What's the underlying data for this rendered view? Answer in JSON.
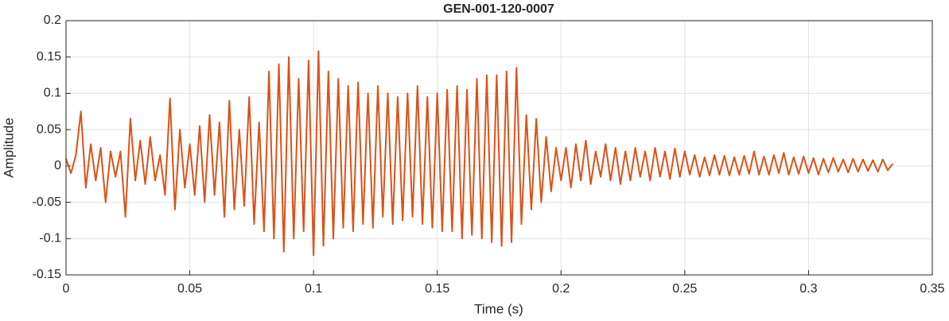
{
  "chart_data": {
    "type": "line",
    "title": "GEN-001-120-0007",
    "xlabel": "Time (s)",
    "ylabel": "Amplitude",
    "xlim": [
      0,
      0.35
    ],
    "xticks": [
      0,
      0.05,
      0.1,
      0.15,
      0.2,
      0.25,
      0.3,
      0.35
    ],
    "ylim": [
      -0.15,
      0.2
    ],
    "yticks": [
      -0.15,
      -0.1,
      -0.05,
      0,
      0.05,
      0.1,
      0.15,
      0.2
    ],
    "grid": true,
    "x": [
      0,
      0.002,
      0.004,
      0.006,
      0.008,
      0.01,
      0.012,
      0.014,
      0.016,
      0.018,
      0.02,
      0.022,
      0.024,
      0.026,
      0.028,
      0.03,
      0.032,
      0.034,
      0.036,
      0.038,
      0.04,
      0.042,
      0.044,
      0.046,
      0.048,
      0.05,
      0.052,
      0.054,
      0.056,
      0.058,
      0.06,
      0.062,
      0.064,
      0.066,
      0.068,
      0.07,
      0.072,
      0.074,
      0.076,
      0.078,
      0.08,
      0.082,
      0.084,
      0.086,
      0.088,
      0.09,
      0.092,
      0.094,
      0.096,
      0.098,
      0.1,
      0.102,
      0.104,
      0.106,
      0.108,
      0.11,
      0.112,
      0.114,
      0.116,
      0.118,
      0.12,
      0.122,
      0.124,
      0.126,
      0.128,
      0.13,
      0.132,
      0.134,
      0.136,
      0.138,
      0.14,
      0.142,
      0.144,
      0.146,
      0.148,
      0.15,
      0.152,
      0.154,
      0.156,
      0.158,
      0.16,
      0.162,
      0.164,
      0.166,
      0.168,
      0.17,
      0.172,
      0.174,
      0.176,
      0.178,
      0.18,
      0.182,
      0.184,
      0.186,
      0.188,
      0.19,
      0.192,
      0.194,
      0.196,
      0.198,
      0.2,
      0.202,
      0.204,
      0.206,
      0.208,
      0.21,
      0.212,
      0.214,
      0.216,
      0.218,
      0.22,
      0.222,
      0.224,
      0.226,
      0.228,
      0.23,
      0.232,
      0.234,
      0.236,
      0.238,
      0.24,
      0.242,
      0.244,
      0.246,
      0.248,
      0.25,
      0.252,
      0.254,
      0.256,
      0.258,
      0.26,
      0.262,
      0.264,
      0.266,
      0.268,
      0.27,
      0.272,
      0.274,
      0.276,
      0.278,
      0.28,
      0.282,
      0.284,
      0.286,
      0.288,
      0.29,
      0.292,
      0.294,
      0.296,
      0.298,
      0.3,
      0.302,
      0.304,
      0.306,
      0.308,
      0.31,
      0.312,
      0.314,
      0.316,
      0.318,
      0.32,
      0.322,
      0.324,
      0.326,
      0.328,
      0.33,
      0.332,
      0.334
    ],
    "series": [
      {
        "color": "#d95319",
        "values": [
          0.01,
          -0.01,
          0.015,
          0.075,
          -0.03,
          0.03,
          -0.02,
          0.025,
          -0.05,
          0.02,
          -0.015,
          0.02,
          -0.07,
          0.065,
          -0.02,
          0.035,
          -0.025,
          0.04,
          -0.02,
          0.015,
          -0.04,
          0.093,
          -0.06,
          0.05,
          -0.03,
          0.03,
          -0.04,
          0.055,
          -0.05,
          0.07,
          -0.04,
          0.06,
          -0.07,
          0.09,
          -0.06,
          0.05,
          -0.055,
          0.095,
          -0.08,
          0.06,
          -0.09,
          0.13,
          -0.1,
          0.14,
          -0.118,
          0.15,
          -0.1,
          0.12,
          -0.09,
          0.145,
          -0.123,
          0.158,
          -0.11,
          0.13,
          -0.1,
          0.12,
          -0.085,
          0.11,
          -0.09,
          0.115,
          -0.08,
          0.1,
          -0.085,
          0.11,
          -0.07,
          0.1,
          -0.08,
          0.095,
          -0.075,
          0.1,
          -0.07,
          0.11,
          -0.08,
          0.095,
          -0.085,
          0.1,
          -0.09,
          0.105,
          -0.09,
          0.11,
          -0.1,
          0.105,
          -0.095,
          0.12,
          -0.1,
          0.125,
          -0.105,
          0.125,
          -0.11,
          0.13,
          -0.105,
          0.135,
          -0.08,
          0.07,
          -0.06,
          0.065,
          -0.05,
          0.04,
          -0.035,
          0.025,
          -0.02,
          0.025,
          -0.03,
          0.03,
          -0.02,
          0.035,
          -0.025,
          0.02,
          -0.015,
          0.03,
          -0.02,
          0.025,
          -0.025,
          0.02,
          -0.02,
          0.025,
          -0.015,
          0.02,
          -0.02,
          0.025,
          -0.015,
          0.02,
          -0.018,
          0.024,
          -0.015,
          0.02,
          -0.012,
          0.015,
          -0.015,
          0.012,
          -0.013,
          0.015,
          -0.012,
          0.014,
          -0.013,
          0.012,
          -0.012,
          0.014,
          -0.011,
          0.02,
          -0.012,
          0.013,
          -0.012,
          0.015,
          -0.01,
          0.018,
          -0.012,
          0.012,
          -0.011,
          0.013,
          -0.01,
          0.011,
          -0.012,
          0.01,
          -0.009,
          0.011,
          -0.008,
          0.009,
          -0.009,
          0.01,
          -0.008,
          0.009,
          -0.007,
          0.008,
          -0.008,
          0.009,
          -0.006,
          0.003
        ]
      }
    ]
  }
}
